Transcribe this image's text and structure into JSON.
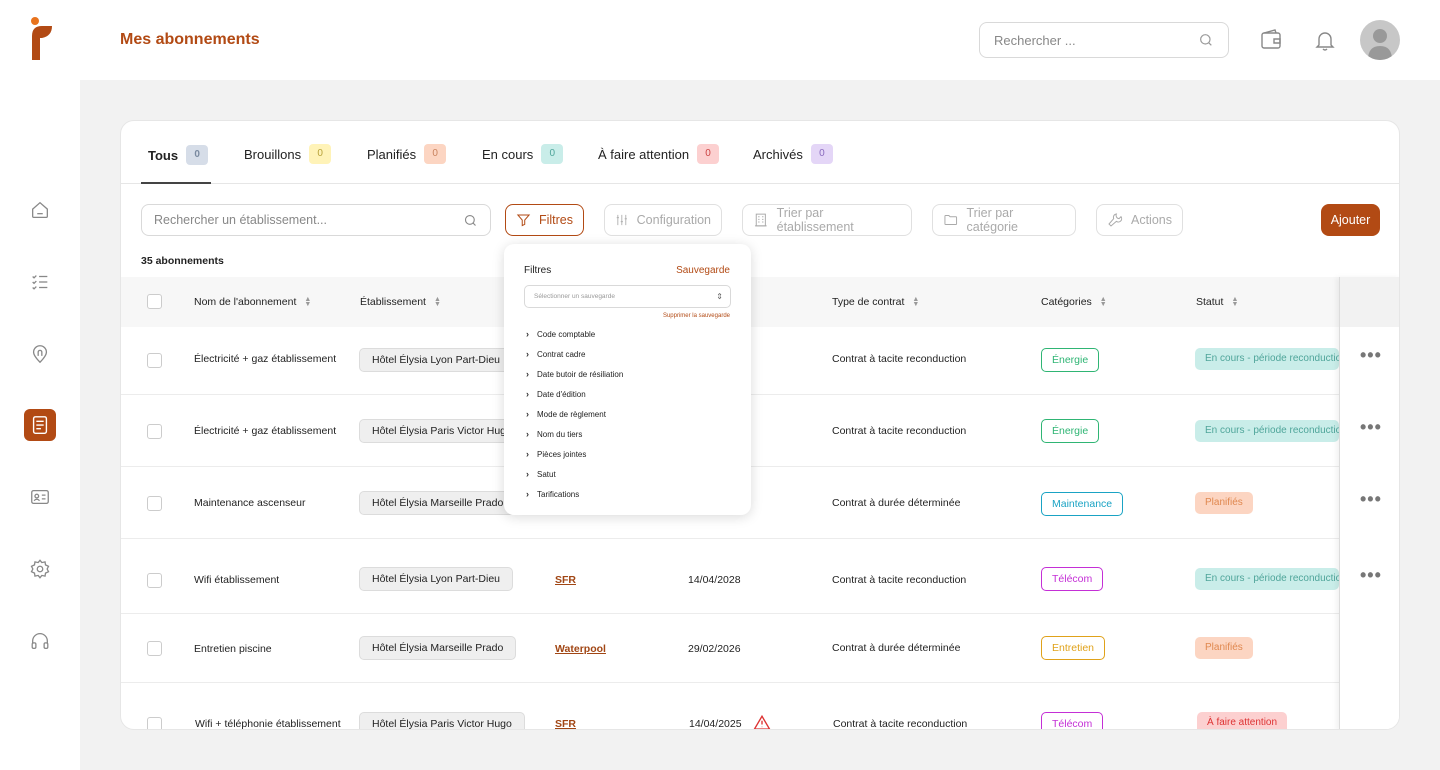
{
  "header": {
    "title": "Mes abonnements",
    "search_placeholder": "Rechercher ..."
  },
  "sidebar": {
    "items": [
      {
        "name": "home-icon"
      },
      {
        "name": "checklist-icon"
      },
      {
        "name": "location-pin-icon"
      },
      {
        "name": "document-icon",
        "active": true
      },
      {
        "name": "contact-card-icon"
      },
      {
        "name": "gear-icon"
      },
      {
        "name": "headset-icon"
      }
    ]
  },
  "tabs": [
    {
      "label": "Tous",
      "count": "0",
      "color": "#d6dde8",
      "text_color": "#7a8aa0"
    },
    {
      "label": "Brouillons",
      "count": "0",
      "color": "#fff3b8",
      "text_color": "#b8a23a"
    },
    {
      "label": "Planifiés",
      "count": "0",
      "color": "#fcd5c2",
      "text_color": "#c9835e"
    },
    {
      "label": "En cours",
      "count": "0",
      "color": "#c9ede9",
      "text_color": "#4fa59a"
    },
    {
      "label": "À faire attention",
      "count": "0",
      "color": "#fcd0d0",
      "text_color": "#c44"
    },
    {
      "label": "Archivés",
      "count": "0",
      "color": "#e4d6f7",
      "text_color": "#8a6bbf"
    }
  ],
  "toolbar": {
    "search_placeholder": "Rechercher un établissement...",
    "filters": "Filtres",
    "configuration": "Configuration",
    "sort_establishment": "Trier par établissement",
    "sort_category": "Trier par catégorie",
    "actions": "Actions",
    "add": "Ajouter"
  },
  "count_label": "35 abonnements",
  "columns": {
    "name": "Nom de l'abonnement",
    "establishment": "Établissement",
    "contract_type": "Type de contrat",
    "categories": "Catégories",
    "status": "Statut"
  },
  "rows": [
    {
      "name": "Électricité + gaz établissement",
      "establishment": "Hôtel Élysia Lyon Part-Dieu",
      "supplier": "",
      "date": "",
      "contract": "Contrat à tacite reconduction",
      "category": "Énergie",
      "cat_color": "#2fb574",
      "status": "En cours - période  reconduction",
      "status_bg": "#c9ede9",
      "status_fg": "#4fa59a",
      "menu": "•••"
    },
    {
      "name": "Électricité + gaz établissement",
      "establishment": "Hôtel Élysia Paris Victor Hugo",
      "supplier": "",
      "date": "",
      "contract": "Contrat à tacite reconduction",
      "category": "Énergie",
      "cat_color": "#2fb574",
      "status": "En cours - période  reconduction",
      "status_bg": "#c9ede9",
      "status_fg": "#4fa59a",
      "menu": "•••"
    },
    {
      "name": "Maintenance ascenseur",
      "establishment": "Hôtel Élysia Marseille Prado",
      "supplier": "",
      "date": "",
      "contract": "Contrat à durée déterminée",
      "category": "Maintenance",
      "cat_color": "#1aa3c4",
      "status": "Planifiés",
      "status_bg": "#fcd5c2",
      "status_fg": "#e0884f",
      "menu": "•••"
    },
    {
      "name": "Wifi établissement",
      "establishment": "Hôtel Élysia Lyon Part-Dieu",
      "supplier": "SFR",
      "date": "14/04/2028",
      "contract": "Contrat à tacite reconduction",
      "category": "Télécom",
      "cat_color": "#c42fd6",
      "status": "En cours - période  reconduction",
      "status_bg": "#c9ede9",
      "status_fg": "#4fa59a",
      "menu": "•••"
    },
    {
      "name": "Entretien piscine",
      "establishment": "Hôtel Élysia Marseille Prado",
      "supplier": "Waterpool",
      "date": "29/02/2026",
      "contract": "Contrat à durée déterminée",
      "category": "Entretien",
      "cat_color": "#e0a21a",
      "status": "Planifiés",
      "status_bg": "#fcd5c2",
      "status_fg": "#e0884f",
      "menu": ""
    },
    {
      "name": "Wifi + téléphonie établissement",
      "establishment": "Hôtel Élysia Paris Victor Hugo",
      "supplier": "SFR",
      "date": "14/04/2025",
      "contract": "Contrat à tacite reconduction",
      "category": "Télécom",
      "cat_color": "#c42fd6",
      "status": "À faire attention",
      "status_bg": "#fcd0d0",
      "status_fg": "#d33",
      "menu": ""
    }
  ],
  "filters_dropdown": {
    "title": "Filtres",
    "save": "Sauvegarde",
    "select_placeholder": "Sélectionner un sauvegarde",
    "delete_save": "Supprimer la sauvegarde",
    "items": [
      "Code comptable",
      "Contrat cadre",
      "Date butoir de résiliation",
      "Date d'édition",
      "Mode de règlement",
      "Nom du tiers",
      "Pièces jointes",
      "Satut",
      "Tarifications"
    ]
  },
  "colors": {
    "accent": "#b24a14"
  }
}
